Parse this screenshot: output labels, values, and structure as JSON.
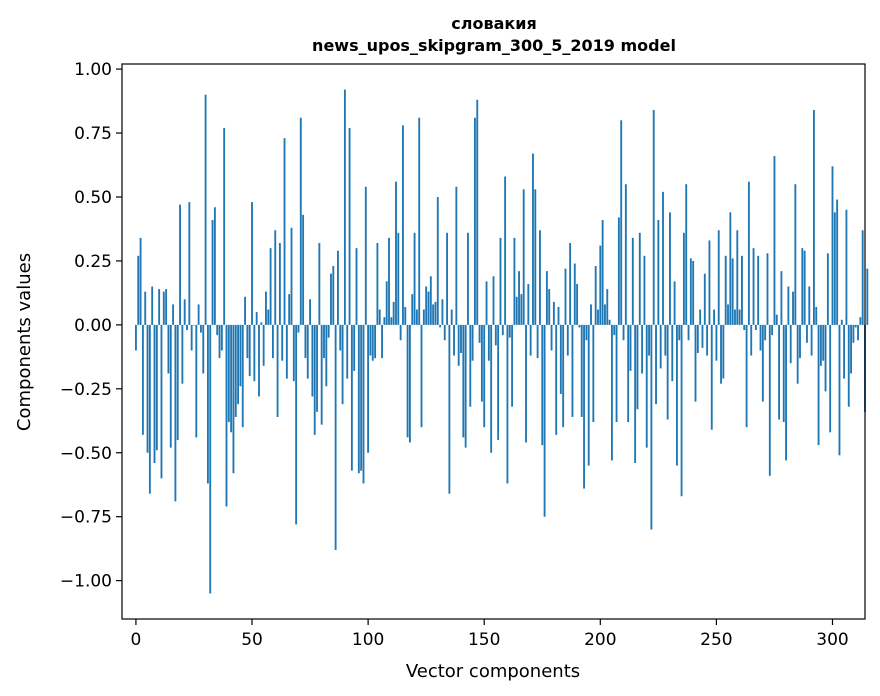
{
  "chart_data": {
    "type": "bar",
    "title": "словакия",
    "subtitle": "news_upos_skipgram_300_5_2019 model",
    "xlabel": "Vector components",
    "ylabel": "Components values",
    "xlim": [
      -6,
      314
    ],
    "ylim": [
      -1.15,
      1.02
    ],
    "x_ticks": [
      0,
      50,
      100,
      150,
      200,
      250,
      300
    ],
    "y_ticks": [
      -1.0,
      -0.75,
      -0.5,
      -0.25,
      0.0,
      0.25,
      0.5,
      0.75,
      1.0
    ],
    "x_tick_labels": [
      "0",
      "50",
      "100",
      "150",
      "200",
      "250",
      "300"
    ],
    "y_tick_labels": [
      "−1.00",
      "−0.75",
      "−0.50",
      "−0.25",
      "0.00",
      "0.25",
      "0.50",
      "0.75",
      "1.00"
    ],
    "grid": false,
    "bar_color": "#1f77b4",
    "values": [
      -0.1,
      0.27,
      0.34,
      -0.43,
      0.13,
      -0.5,
      -0.66,
      0.15,
      -0.54,
      -0.49,
      0.14,
      -0.6,
      0.13,
      0.14,
      -0.19,
      -0.48,
      0.08,
      -0.69,
      -0.45,
      0.47,
      -0.23,
      0.1,
      -0.02,
      0.48,
      -0.1,
      0.0,
      -0.44,
      0.08,
      -0.03,
      -0.19,
      0.9,
      -0.62,
      -1.05,
      0.41,
      0.46,
      -0.04,
      -0.13,
      -0.1,
      0.77,
      -0.71,
      -0.38,
      -0.42,
      -0.58,
      -0.36,
      -0.31,
      -0.24,
      -0.4,
      0.11,
      -0.13,
      -0.2,
      0.48,
      -0.22,
      0.05,
      -0.28,
      0.01,
      -0.16,
      0.13,
      0.06,
      0.3,
      -0.13,
      0.37,
      -0.36,
      0.32,
      -0.14,
      0.73,
      -0.21,
      0.12,
      0.38,
      -0.22,
      -0.78,
      -0.03,
      0.81,
      0.43,
      -0.13,
      -0.21,
      0.1,
      -0.28,
      -0.43,
      -0.34,
      0.32,
      -0.39,
      -0.13,
      -0.24,
      -0.05,
      0.2,
      0.23,
      -0.88,
      0.29,
      -0.1,
      -0.31,
      0.92,
      -0.21,
      0.77,
      -0.57,
      -0.18,
      0.3,
      -0.58,
      -0.57,
      -0.62,
      0.54,
      -0.5,
      -0.12,
      -0.14,
      -0.13,
      0.32,
      0.06,
      -0.13,
      0.03,
      0.17,
      0.34,
      0.03,
      0.09,
      0.56,
      0.36,
      -0.06,
      0.78,
      0.07,
      -0.44,
      -0.46,
      0.12,
      0.36,
      0.06,
      0.81,
      -0.4,
      0.06,
      0.15,
      0.13,
      0.19,
      0.08,
      0.09,
      0.5,
      -0.01,
      0.1,
      -0.06,
      0.36,
      -0.66,
      0.06,
      -0.12,
      0.54,
      -0.16,
      -0.11,
      -0.44,
      -0.48,
      0.36,
      -0.32,
      -0.14,
      0.81,
      0.88,
      -0.07,
      -0.3,
      -0.4,
      0.17,
      -0.14,
      -0.5,
      0.19,
      -0.08,
      -0.45,
      0.34,
      -0.04,
      0.58,
      -0.62,
      -0.05,
      -0.32,
      0.34,
      0.11,
      0.21,
      0.12,
      0.53,
      -0.46,
      0.16,
      -0.12,
      0.67,
      0.53,
      -0.13,
      0.37,
      -0.47,
      -0.75,
      0.21,
      0.14,
      -0.1,
      0.09,
      -0.43,
      0.07,
      -0.27,
      -0.4,
      0.22,
      -0.12,
      0.32,
      -0.36,
      0.24,
      0.16,
      -0.01,
      -0.36,
      -0.64,
      -0.06,
      -0.55,
      0.08,
      -0.38,
      0.23,
      0.06,
      0.31,
      0.41,
      0.08,
      0.14,
      0.02,
      -0.53,
      -0.04,
      -0.38,
      0.42,
      0.8,
      -0.06,
      0.55,
      -0.38,
      -0.18,
      0.34,
      -0.54,
      -0.33,
      0.36,
      -0.19,
      0.27,
      -0.48,
      -0.12,
      -0.8,
      0.84,
      -0.31,
      0.41,
      -0.17,
      0.52,
      -0.12,
      -0.37,
      0.44,
      -0.22,
      0.17,
      -0.55,
      -0.06,
      -0.67,
      0.36,
      0.55,
      -0.06,
      0.26,
      0.25,
      -0.3,
      -0.11,
      0.06,
      -0.09,
      0.2,
      -0.12,
      0.33,
      -0.41,
      0.06,
      -0.14,
      0.37,
      -0.23,
      -0.21,
      0.27,
      0.08,
      0.44,
      0.26,
      0.06,
      0.37,
      0.06,
      0.27,
      -0.02,
      -0.4,
      0.56,
      -0.12,
      0.3,
      -0.02,
      0.27,
      -0.1,
      -0.3,
      -0.06,
      0.28,
      -0.59,
      -0.04,
      0.66,
      0.04,
      -0.37,
      0.21,
      -0.38,
      -0.53,
      0.15,
      -0.15,
      0.13,
      0.55,
      -0.23,
      -0.13,
      0.3,
      0.29,
      -0.07,
      0.15,
      -0.12,
      0.84,
      0.07,
      -0.47,
      -0.16,
      -0.14,
      -0.26,
      0.28,
      -0.42,
      0.62,
      0.44,
      0.49,
      -0.51,
      0.02,
      -0.21,
      0.45,
      -0.32,
      -0.19,
      -0.07,
      -0.01,
      -0.06,
      0.03,
      0.37,
      -0.34,
      0.22
    ]
  }
}
